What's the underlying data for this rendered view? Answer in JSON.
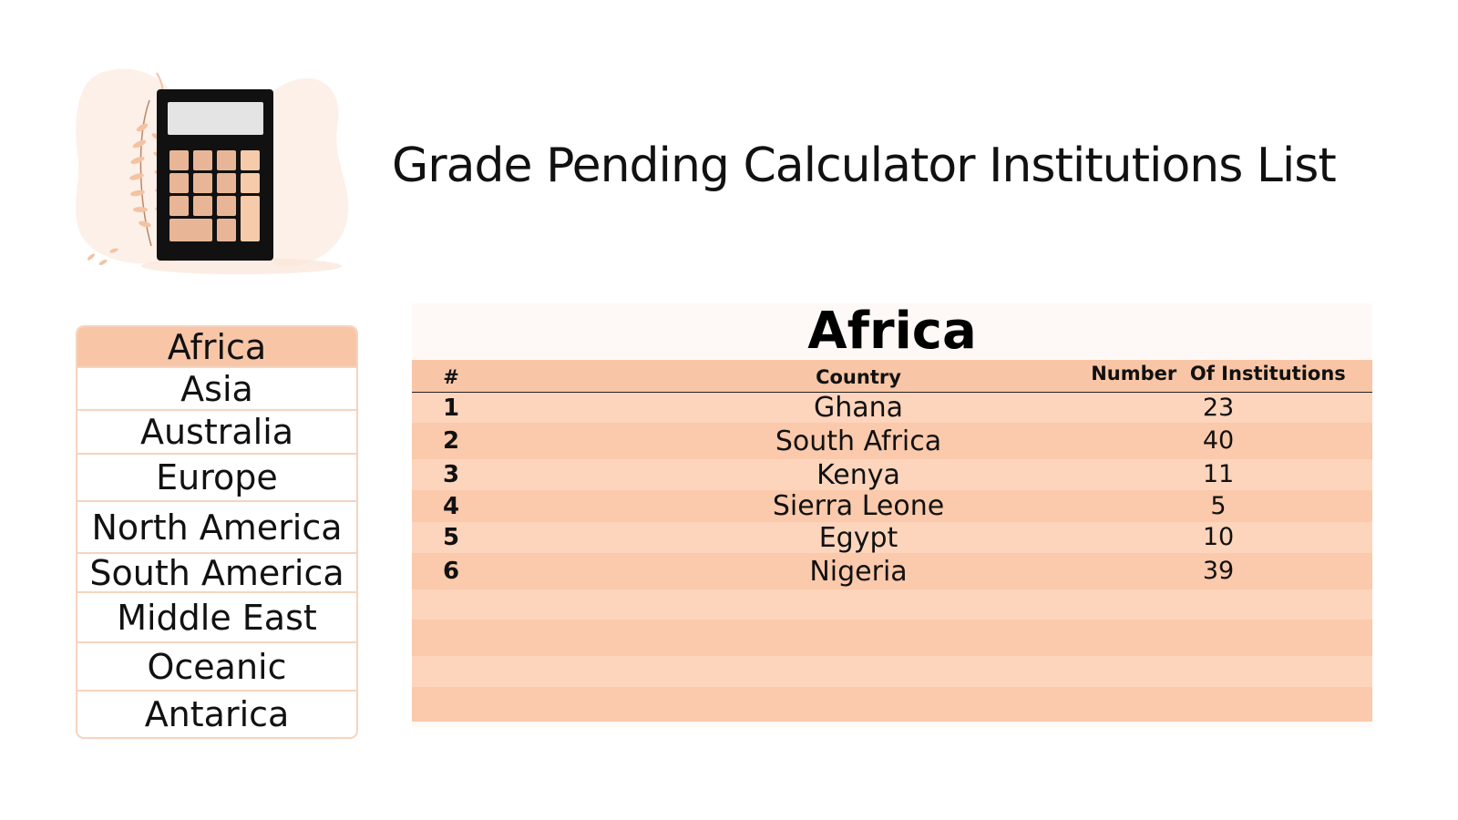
{
  "page": {
    "title": "Grade Pending Calculator Institutions List"
  },
  "logo": {
    "icon": "calculator-icon"
  },
  "regions": {
    "active": "Africa",
    "items": [
      {
        "label": "Africa"
      },
      {
        "label": "Asia"
      },
      {
        "label": "Australia"
      },
      {
        "label": "Europe"
      },
      {
        "label": "North America"
      },
      {
        "label": "South America"
      },
      {
        "label": "Middle East"
      },
      {
        "label": "Oceanic"
      },
      {
        "label": "Antarica"
      }
    ]
  },
  "table": {
    "title": "Africa",
    "headers": {
      "num": "#",
      "country": "Country",
      "institutions": "Number  Of Institutions"
    },
    "rows": [
      {
        "num": "1",
        "country": "Ghana",
        "institutions": "23"
      },
      {
        "num": "2",
        "country": "South Africa",
        "institutions": "40"
      },
      {
        "num": "3",
        "country": "Kenya",
        "institutions": "11"
      },
      {
        "num": "4",
        "country": "Sierra Leone",
        "institutions": "5"
      },
      {
        "num": "5",
        "country": "Egypt",
        "institutions": "10"
      },
      {
        "num": "6",
        "country": "Nigeria",
        "institutions": "39"
      },
      {
        "num": "",
        "country": "",
        "institutions": ""
      },
      {
        "num": "",
        "country": "",
        "institutions": ""
      },
      {
        "num": "",
        "country": "",
        "institutions": ""
      },
      {
        "num": "",
        "country": "",
        "institutions": ""
      }
    ]
  },
  "colors": {
    "accent": "#f8c6a6",
    "row_light": "#fdd5bc",
    "row_dark": "#fbc9ab",
    "border": "#f6d4bf"
  }
}
